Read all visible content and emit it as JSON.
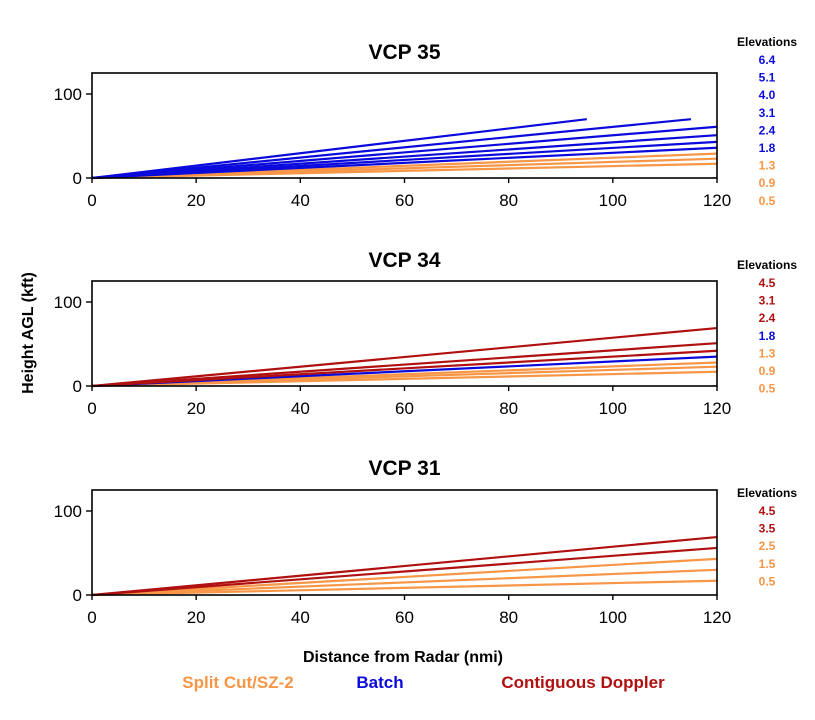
{
  "colors": {
    "split": "#F79646",
    "batch": "#0A0ADC",
    "doppler": "#B01010"
  },
  "chart_data": {
    "type": "line",
    "xlabel": "Distance from Radar (nmi)",
    "ylabel": "Height AGL (kft)",
    "xlim": [
      0,
      120
    ],
    "ylim": [
      0,
      125
    ],
    "xticks": [
      "0",
      "20",
      "40",
      "60",
      "80",
      "100",
      "120"
    ],
    "yticks": [
      "0",
      "100"
    ],
    "elevations_label": "Elevations",
    "legend": [
      {
        "label": "Split Cut/SZ-2",
        "color": "split"
      },
      {
        "label": "Batch",
        "color": "batch"
      },
      {
        "label": "Contiguous Doppler",
        "color": "doppler"
      }
    ],
    "panels": [
      {
        "title": "VCP 35",
        "elevations": [
          {
            "label": "6.4",
            "color": "batch"
          },
          {
            "label": "5.1",
            "color": "batch"
          },
          {
            "label": "4.0",
            "color": "batch"
          },
          {
            "label": "3.1",
            "color": "batch"
          },
          {
            "label": "2.4",
            "color": "batch"
          },
          {
            "label": "1.8",
            "color": "batch"
          },
          {
            "label": "1.3",
            "color": "split"
          },
          {
            "label": "0.9",
            "color": "split"
          },
          {
            "label": "0.5",
            "color": "split"
          }
        ],
        "series": [
          {
            "name": "0.5",
            "color": "split",
            "x": [
              0,
              120
            ],
            "y": [
              0,
              17
            ]
          },
          {
            "name": "0.9",
            "color": "split",
            "x": [
              0,
              120
            ],
            "y": [
              0,
              23
            ]
          },
          {
            "name": "1.3",
            "color": "split",
            "x": [
              0,
              120
            ],
            "y": [
              0,
              29
            ]
          },
          {
            "name": "1.8",
            "color": "batch",
            "x": [
              0,
              120
            ],
            "y": [
              0,
              36
            ]
          },
          {
            "name": "2.4",
            "color": "batch",
            "x": [
              0,
              120
            ],
            "y": [
              0,
              43
            ]
          },
          {
            "name": "3.1",
            "color": "batch",
            "x": [
              0,
              120
            ],
            "y": [
              0,
              51
            ]
          },
          {
            "name": "4.0",
            "color": "batch",
            "x": [
              0,
              120
            ],
            "y": [
              0,
              61
            ]
          },
          {
            "name": "5.1",
            "color": "batch",
            "x": [
              0,
              115
            ],
            "y": [
              0,
              70
            ]
          },
          {
            "name": "6.4",
            "color": "batch",
            "x": [
              0,
              95
            ],
            "y": [
              0,
              70
            ]
          }
        ]
      },
      {
        "title": "VCP 34",
        "elevations": [
          {
            "label": "4.5",
            "color": "doppler"
          },
          {
            "label": "3.1",
            "color": "doppler"
          },
          {
            "label": "2.4",
            "color": "doppler"
          },
          {
            "label": "1.8",
            "color": "batch"
          },
          {
            "label": "1.3",
            "color": "split"
          },
          {
            "label": "0.9",
            "color": "split"
          },
          {
            "label": "0.5",
            "color": "split"
          }
        ],
        "series": [
          {
            "name": "0.5",
            "color": "split",
            "x": [
              0,
              120
            ],
            "y": [
              0,
              17
            ]
          },
          {
            "name": "0.9",
            "color": "split",
            "x": [
              0,
              120
            ],
            "y": [
              0,
              23
            ]
          },
          {
            "name": "1.3",
            "color": "split",
            "x": [
              0,
              120
            ],
            "y": [
              0,
              28
            ]
          },
          {
            "name": "1.8",
            "color": "batch",
            "x": [
              0,
              120
            ],
            "y": [
              0,
              35
            ]
          },
          {
            "name": "2.4",
            "color": "doppler",
            "x": [
              0,
              120
            ],
            "y": [
              0,
              42
            ]
          },
          {
            "name": "3.1",
            "color": "doppler",
            "x": [
              0,
              120
            ],
            "y": [
              0,
              51
            ]
          },
          {
            "name": "4.5",
            "color": "doppler",
            "x": [
              0,
              120
            ],
            "y": [
              0,
              69
            ]
          }
        ]
      },
      {
        "title": "VCP 31",
        "elevations": [
          {
            "label": "4.5",
            "color": "doppler"
          },
          {
            "label": "3.5",
            "color": "doppler"
          },
          {
            "label": "2.5",
            "color": "split"
          },
          {
            "label": "1.5",
            "color": "split"
          },
          {
            "label": "0.5",
            "color": "split"
          }
        ],
        "series": [
          {
            "name": "0.5",
            "color": "split",
            "x": [
              0,
              120
            ],
            "y": [
              0,
              17
            ]
          },
          {
            "name": "1.5",
            "color": "split",
            "x": [
              0,
              120
            ],
            "y": [
              0,
              30
            ]
          },
          {
            "name": "2.5",
            "color": "split",
            "x": [
              0,
              120
            ],
            "y": [
              0,
              43
            ]
          },
          {
            "name": "3.5",
            "color": "doppler",
            "x": [
              0,
              120
            ],
            "y": [
              0,
              56
            ]
          },
          {
            "name": "4.5",
            "color": "doppler",
            "x": [
              0,
              120
            ],
            "y": [
              0,
              69
            ]
          }
        ]
      }
    ]
  }
}
